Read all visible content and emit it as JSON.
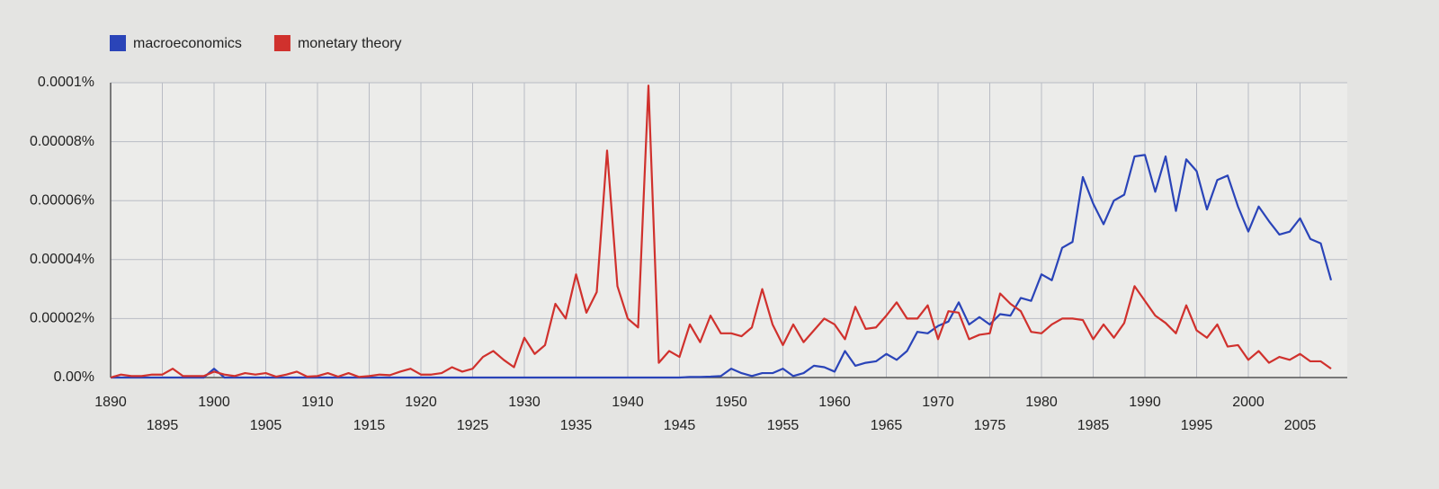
{
  "chart_data": {
    "type": "line",
    "x": [
      1890,
      1891,
      1892,
      1893,
      1894,
      1895,
      1896,
      1897,
      1898,
      1899,
      1900,
      1901,
      1902,
      1903,
      1904,
      1905,
      1906,
      1907,
      1908,
      1909,
      1910,
      1911,
      1912,
      1913,
      1914,
      1915,
      1916,
      1917,
      1918,
      1919,
      1920,
      1921,
      1922,
      1923,
      1924,
      1925,
      1926,
      1927,
      1928,
      1929,
      1930,
      1931,
      1932,
      1933,
      1934,
      1935,
      1936,
      1937,
      1938,
      1939,
      1940,
      1941,
      1942,
      1943,
      1944,
      1945,
      1946,
      1947,
      1948,
      1949,
      1950,
      1951,
      1952,
      1953,
      1954,
      1955,
      1956,
      1957,
      1958,
      1959,
      1960,
      1961,
      1962,
      1963,
      1964,
      1965,
      1966,
      1967,
      1968,
      1969,
      1970,
      1971,
      1972,
      1973,
      1974,
      1975,
      1976,
      1977,
      1978,
      1979,
      1980,
      1981,
      1982,
      1983,
      1984,
      1985,
      1986,
      1987,
      1988,
      1989,
      1990,
      1991,
      1992,
      1993,
      1994,
      1995,
      1996,
      1997,
      1998,
      1999,
      2000,
      2001,
      2002,
      2003,
      2004,
      2005,
      2006,
      2007,
      2008
    ],
    "series": [
      {
        "name": "macroeconomics",
        "color": "#2a44b8",
        "values": [
          0,
          0,
          0,
          0,
          0,
          0,
          0,
          0,
          0,
          0,
          3e-06,
          0,
          0,
          0,
          0,
          0,
          0,
          0,
          0,
          0,
          0,
          0,
          0,
          0,
          0,
          0,
          0,
          0,
          0,
          0,
          0,
          0,
          0,
          0,
          0,
          0,
          0,
          0,
          0,
          0,
          0,
          0,
          0,
          0,
          0,
          0,
          0,
          0,
          0,
          0,
          0,
          0,
          0,
          0,
          0,
          0,
          2e-07,
          2e-07,
          3e-07,
          5e-07,
          3e-06,
          1.5e-06,
          5e-07,
          1.5e-06,
          1.5e-06,
          3e-06,
          5e-07,
          1.5e-06,
          4e-06,
          3.5e-06,
          2e-06,
          9e-06,
          4e-06,
          5e-06,
          5.5e-06,
          8e-06,
          6e-06,
          9e-06,
          1.55e-05,
          1.5e-05,
          1.75e-05,
          1.9e-05,
          2.55e-05,
          1.8e-05,
          2.05e-05,
          1.8e-05,
          2.15e-05,
          2.1e-05,
          2.7e-05,
          2.6e-05,
          3.5e-05,
          3.3e-05,
          4.4e-05,
          4.6e-05,
          6.8e-05,
          5.9e-05,
          5.2e-05,
          6e-05,
          6.2e-05,
          7.5e-05,
          7.55e-05,
          6.3e-05,
          7.5e-05,
          5.65e-05,
          7.4e-05,
          7e-05,
          5.7e-05,
          6.7e-05,
          6.85e-05,
          5.8e-05,
          4.95e-05,
          5.8e-05,
          5.3e-05,
          4.85e-05,
          4.95e-05,
          5.4e-05,
          4.7e-05,
          4.55e-05,
          3.3e-05
        ]
      },
      {
        "name": "monetary theory",
        "color": "#d0312d",
        "values": [
          0,
          1e-06,
          5e-07,
          5e-07,
          1e-06,
          1e-06,
          3e-06,
          5e-07,
          5e-07,
          5e-07,
          2e-06,
          1e-06,
          5e-07,
          1.5e-06,
          1e-06,
          1.5e-06,
          3e-07,
          1e-06,
          2e-06,
          3e-07,
          5e-07,
          1.5e-06,
          3e-07,
          1.5e-06,
          2e-07,
          5e-07,
          1e-06,
          8e-07,
          2e-06,
          3e-06,
          1e-06,
          1e-06,
          1.5e-06,
          3.5e-06,
          2e-06,
          3e-06,
          7e-06,
          9e-06,
          6e-06,
          3.5e-06,
          1.35e-05,
          8e-06,
          1.1e-05,
          2.5e-05,
          2e-05,
          3.5e-05,
          2.2e-05,
          2.9e-05,
          7.7e-05,
          3.1e-05,
          2e-05,
          1.7e-05,
          9.9e-05,
          5e-06,
          9e-06,
          7e-06,
          1.8e-05,
          1.2e-05,
          2.1e-05,
          1.5e-05,
          1.5e-05,
          1.4e-05,
          1.7e-05,
          3e-05,
          1.8e-05,
          1.1e-05,
          1.8e-05,
          1.2e-05,
          1.6e-05,
          2e-05,
          1.8e-05,
          1.3e-05,
          2.4e-05,
          1.65e-05,
          1.7e-05,
          2.1e-05,
          2.55e-05,
          2e-05,
          2e-05,
          2.45e-05,
          1.3e-05,
          2.25e-05,
          2.2e-05,
          1.3e-05,
          1.45e-05,
          1.5e-05,
          2.85e-05,
          2.5e-05,
          2.25e-05,
          1.55e-05,
          1.5e-05,
          1.8e-05,
          2e-05,
          2e-05,
          1.95e-05,
          1.3e-05,
          1.8e-05,
          1.35e-05,
          1.85e-05,
          3.1e-05,
          2.6e-05,
          2.1e-05,
          1.85e-05,
          1.5e-05,
          2.45e-05,
          1.6e-05,
          1.35e-05,
          1.8e-05,
          1.05e-05,
          1.1e-05,
          6e-06,
          9e-06,
          5e-06,
          7e-06,
          6e-06,
          8e-06,
          5.5e-06,
          5.5e-06,
          3e-06
        ]
      }
    ],
    "xlim": [
      1890,
      2008
    ],
    "xticks": [
      1890,
      1895,
      1900,
      1905,
      1910,
      1915,
      1920,
      1925,
      1930,
      1935,
      1940,
      1945,
      1950,
      1955,
      1960,
      1965,
      1970,
      1975,
      1980,
      1985,
      1990,
      1995,
      2000,
      2005
    ],
    "ylim": [
      0,
      0.0001
    ],
    "yticks": [
      {
        "value": 0,
        "label": "0.00%"
      },
      {
        "value": 2e-05,
        "label": "0.00002%"
      },
      {
        "value": 4e-05,
        "label": "0.00004%"
      },
      {
        "value": 6e-05,
        "label": "0.00006%"
      },
      {
        "value": 8e-05,
        "label": "0.00008%"
      },
      {
        "value": 0.0001,
        "label": "0.0001%"
      }
    ],
    "grid": true
  }
}
